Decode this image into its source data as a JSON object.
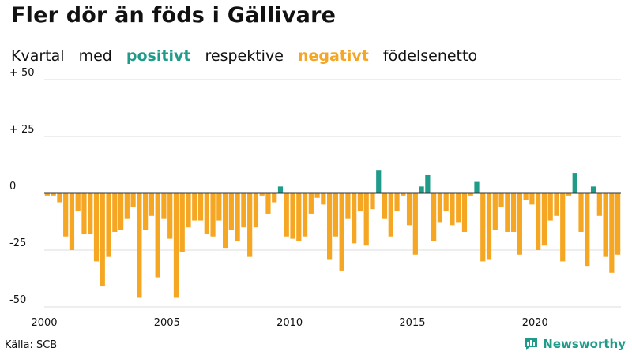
{
  "title": "Fler dör än föds i Gällivare",
  "subtitle": {
    "part1": "Kvartal",
    "part2": "med",
    "positive": "positivt",
    "part3": "respektive",
    "negative": "negativt",
    "part4": "födelsenetto"
  },
  "source": "Källa: SCB",
  "brand": {
    "name": "Newsworthy",
    "icon": "newsworthy-logo-icon"
  },
  "colors": {
    "positive": "#1f9b8a",
    "negative": "#f5a623",
    "grid": "#dddddd",
    "zero": "#333333"
  },
  "chart_data": {
    "type": "bar",
    "title": "Fler dör än föds i Gällivare",
    "start": "2000Q1",
    "frequency": "quarterly",
    "x_tick_labels": [
      "2000",
      "2005",
      "2010",
      "2015",
      "2020"
    ],
    "y_tick_labels": [
      "+ 50",
      "+ 25",
      "0",
      "-25",
      "-50"
    ],
    "y_ticks": [
      50,
      25,
      0,
      -25,
      -50
    ],
    "ylim": [
      -50,
      50
    ],
    "grid": true,
    "values": [
      -1,
      -1,
      -4,
      -19,
      -25,
      -8,
      -18,
      -18,
      -30,
      -41,
      -28,
      -17,
      -16,
      -11,
      -6,
      -46,
      -16,
      -10,
      -37,
      -11,
      -20,
      -46,
      -26,
      -15,
      -12,
      -12,
      -18,
      -19,
      -12,
      -24,
      -16,
      -21,
      -15,
      -28,
      -15,
      -1,
      -9,
      -4,
      3,
      -19,
      -20,
      -21,
      -19,
      -9,
      -2,
      -5,
      -29,
      -19,
      -34,
      -11,
      -22,
      -8,
      -23,
      -7,
      10,
      -11,
      -19,
      -8,
      -1,
      -14,
      -27,
      3,
      8,
      -21,
      -13,
      -8,
      -14,
      -13,
      -17,
      -1,
      5,
      -30,
      -29,
      -16,
      -6,
      -17,
      -17,
      -27,
      -3,
      -5,
      -25,
      -23,
      -12,
      -10,
      -30,
      -1,
      9,
      -17,
      -32,
      3,
      -10,
      -28,
      -35,
      -27
    ]
  }
}
